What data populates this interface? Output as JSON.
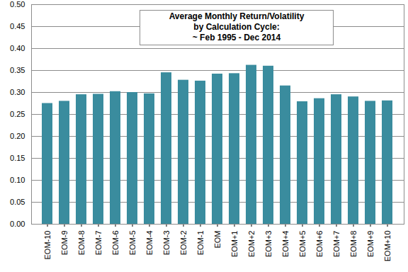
{
  "chart_data": {
    "type": "bar",
    "title": "Average Monthly Return/Volatility\nby Calculation Cycle:\n~ Feb 1995 - Dec 2014",
    "categories": [
      "EOM-10",
      "EOM-9",
      "EOM-8",
      "EOM-7",
      "EOM-6",
      "EOM-5",
      "EOM-4",
      "EOM-3",
      "EOM-2",
      "EOM-1",
      "EOM",
      "EOM+1",
      "EOM+2",
      "EOM+3",
      "EOM+4",
      "EOM+5",
      "EOM+6",
      "EOM+7",
      "EOM+8",
      "EOM+9",
      "EOM+10"
    ],
    "values": [
      0.275,
      0.28,
      0.295,
      0.296,
      0.302,
      0.3,
      0.297,
      0.345,
      0.328,
      0.326,
      0.342,
      0.343,
      0.362,
      0.36,
      0.315,
      0.279,
      0.286,
      0.295,
      0.29,
      0.28,
      0.281
    ],
    "color": "#3a8c9e",
    "ylim": [
      0,
      0.5
    ],
    "yticks": [
      {
        "value": 0,
        "label": "0.00"
      },
      0.05,
      {
        "value": 0.1,
        "label": "0.10"
      },
      0.15,
      {
        "value": 0.2,
        "label": "0.20"
      },
      0.25,
      {
        "value": 0.3,
        "label": "0.30"
      },
      0.35,
      {
        "value": 0.4,
        "label": "0.40"
      },
      0.45,
      {
        "value": 0.5,
        "label": "0.50"
      }
    ],
    "grid": true
  }
}
